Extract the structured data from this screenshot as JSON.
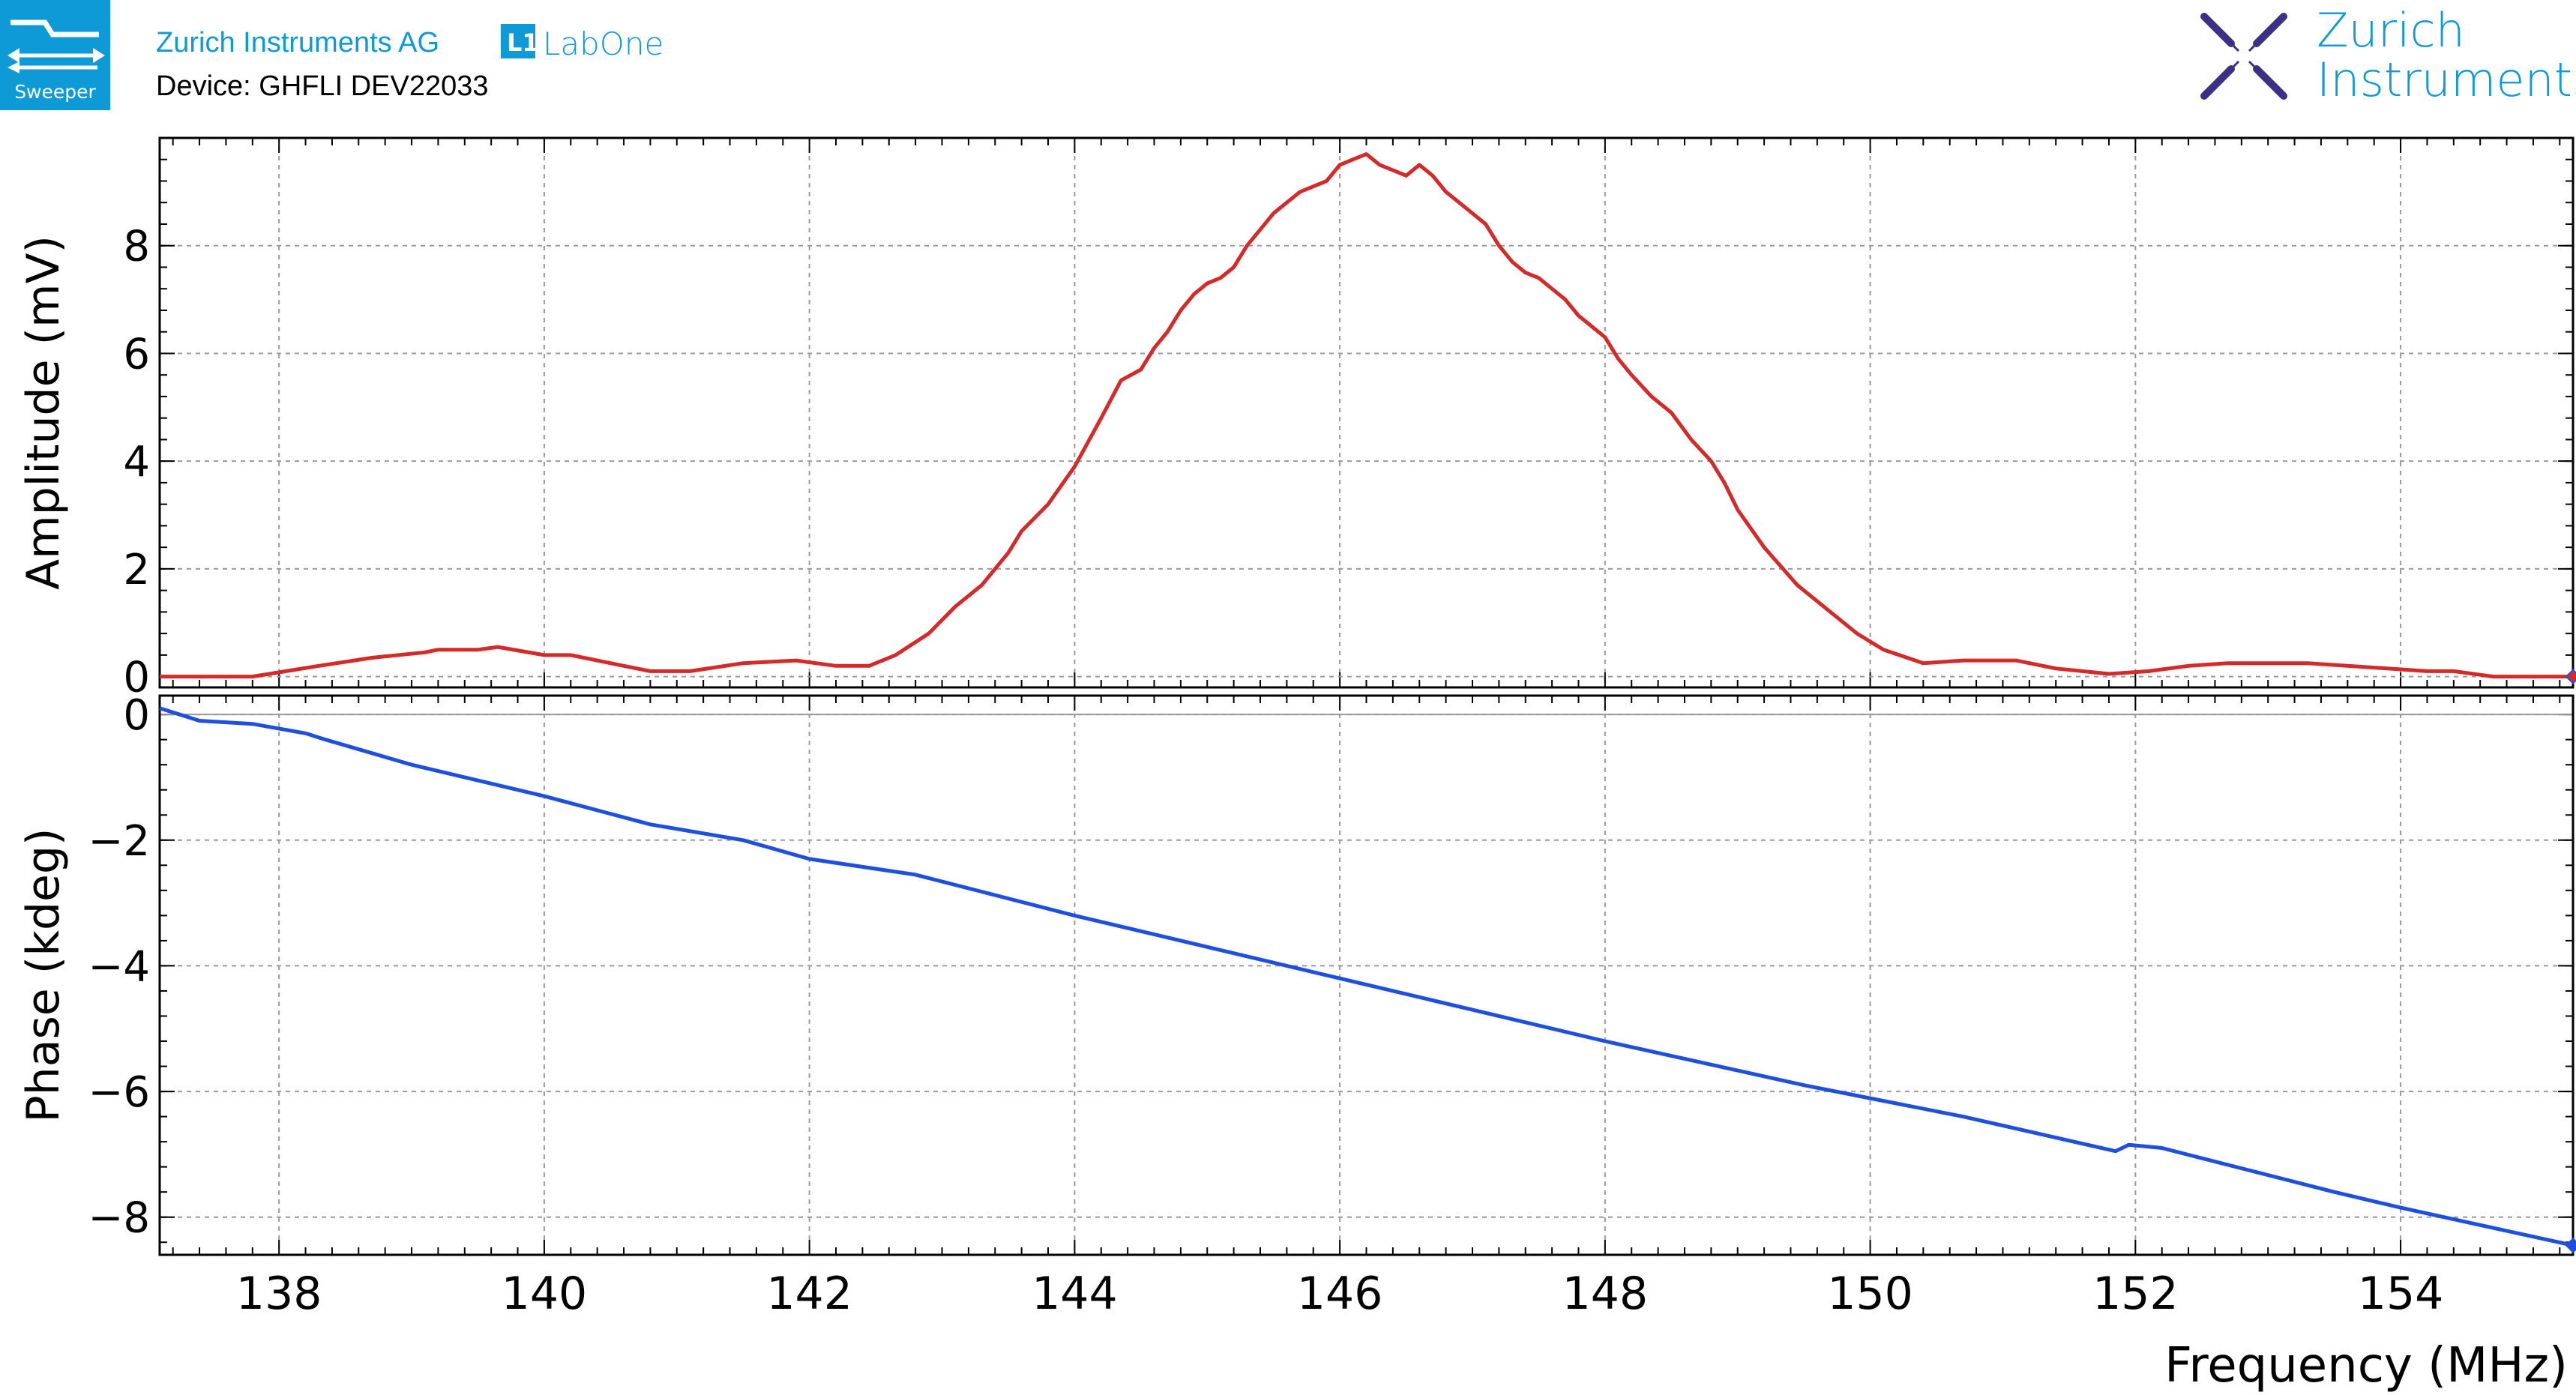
{
  "header": {
    "app_badge_label": "Sweeper",
    "company": "Zurich Instruments AG",
    "product_box": "L1",
    "product": "LabOne",
    "device": "Device: GHFLI DEV22033",
    "logo_line1": "Zurich",
    "logo_line2": "Instruments"
  },
  "colors": {
    "brand": "#0e9ad7",
    "amplitude": "#d42a2a",
    "phase": "#1f4fe0",
    "grid": "#9a9a9a"
  },
  "chart_data": [
    {
      "type": "line",
      "name": "amplitude",
      "ylabel": "Amplitude (mV)",
      "xlim": [
        137.1,
        155.3
      ],
      "ylim": [
        -0.2,
        10
      ],
      "yticks": [
        0,
        2,
        4,
        6,
        8
      ],
      "ytick_labels": [
        "0",
        "2",
        "4",
        "6",
        "8"
      ],
      "grid": true,
      "series": [
        {
          "name": "Amplitude",
          "x": [
            137.1,
            137.5,
            137.8,
            138.3,
            138.7,
            139.1,
            139.2,
            139.5,
            139.65,
            140.0,
            140.2,
            140.6,
            140.8,
            141.1,
            141.5,
            141.9,
            142.2,
            142.45,
            142.65,
            142.9,
            143.1,
            143.3,
            143.5,
            143.6,
            143.8,
            144.0,
            144.2,
            144.35,
            144.5,
            144.6,
            144.7,
            144.8,
            144.9,
            145.0,
            145.1,
            145.2,
            145.3,
            145.4,
            145.5,
            145.6,
            145.7,
            145.8,
            145.9,
            146.0,
            146.1,
            146.2,
            146.3,
            146.4,
            146.5,
            146.6,
            146.7,
            146.8,
            146.9,
            147.0,
            147.1,
            147.2,
            147.3,
            147.4,
            147.5,
            147.6,
            147.7,
            147.8,
            147.9,
            148.0,
            148.1,
            148.2,
            148.35,
            148.5,
            148.65,
            148.8,
            148.9,
            149.0,
            149.2,
            149.45,
            149.7,
            149.9,
            150.1,
            150.4,
            150.7,
            151.1,
            151.4,
            151.8,
            152.1,
            152.4,
            152.7,
            153.0,
            153.3,
            153.6,
            153.9,
            154.2,
            154.4,
            154.7,
            155.0,
            155.3
          ],
          "y": [
            0.0,
            0.0,
            0.0,
            0.2,
            0.35,
            0.45,
            0.5,
            0.5,
            0.55,
            0.4,
            0.4,
            0.2,
            0.1,
            0.1,
            0.25,
            0.3,
            0.2,
            0.2,
            0.4,
            0.8,
            1.3,
            1.7,
            2.3,
            2.7,
            3.2,
            3.9,
            4.8,
            5.5,
            5.7,
            6.1,
            6.4,
            6.8,
            7.1,
            7.3,
            7.4,
            7.6,
            8.0,
            8.3,
            8.6,
            8.8,
            9.0,
            9.1,
            9.2,
            9.5,
            9.6,
            9.7,
            9.5,
            9.4,
            9.3,
            9.5,
            9.3,
            9.0,
            8.8,
            8.6,
            8.4,
            8.0,
            7.7,
            7.5,
            7.4,
            7.2,
            7.0,
            6.7,
            6.5,
            6.3,
            5.9,
            5.6,
            5.2,
            4.9,
            4.4,
            4.0,
            3.6,
            3.1,
            2.4,
            1.7,
            1.2,
            0.8,
            0.5,
            0.25,
            0.3,
            0.3,
            0.15,
            0.05,
            0.1,
            0.2,
            0.25,
            0.25,
            0.25,
            0.2,
            0.15,
            0.1,
            0.1,
            0.0,
            0.0,
            0.0
          ]
        }
      ]
    },
    {
      "type": "line",
      "name": "phase",
      "ylabel": "Phase (kdeg)",
      "xlabel": "Frequency (MHz)",
      "xlim": [
        137.1,
        155.3
      ],
      "ylim": [
        -8.6,
        0.3
      ],
      "yticks": [
        0,
        -2,
        -4,
        -6,
        -8
      ],
      "ytick_labels": [
        "0",
        "−2",
        "−4",
        "−6",
        "−8"
      ],
      "xticks": [
        138,
        140,
        142,
        144,
        146,
        148,
        150,
        152,
        154
      ],
      "xtick_labels": [
        "138",
        "140",
        "142",
        "144",
        "146",
        "148",
        "150",
        "152",
        "154"
      ],
      "grid": true,
      "series": [
        {
          "name": "Phase",
          "x": [
            137.1,
            137.4,
            137.8,
            138.2,
            138.35,
            139.0,
            140.0,
            140.8,
            141.5,
            142.0,
            142.8,
            144.0,
            146.0,
            148.0,
            149.5,
            150.7,
            151.85,
            151.95,
            152.1,
            152.2,
            153.5,
            154.0,
            155.3
          ],
          "y": [
            0.1,
            -0.1,
            -0.15,
            -0.3,
            -0.4,
            -0.8,
            -1.3,
            -1.75,
            -2.0,
            -2.3,
            -2.55,
            -3.2,
            -4.2,
            -5.2,
            -5.9,
            -6.4,
            -6.95,
            -6.85,
            -6.88,
            -6.9,
            -7.6,
            -7.85,
            -8.45
          ]
        }
      ]
    }
  ]
}
